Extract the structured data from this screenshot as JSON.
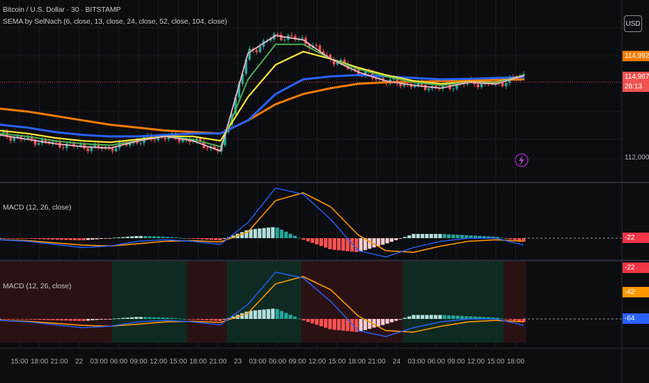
{
  "header": {
    "symbol_title": "Bitcoin / U.S. Dollar · 30 · BITSTAMP",
    "indicator_title": "SEMA by SelNach (6, close, 13, close, 24, close, 52, close, 104, close)",
    "currency_button": "USD"
  },
  "panes": {
    "macd1_title": "MACD (12, 26, close)",
    "macd2_title": "MACD (12, 26, close)"
  },
  "price_scale": {
    "badge_orange": "114,992",
    "badge_red": "114,967",
    "badge_countdown": "28:13",
    "label_112000": "112,000",
    "macd1_badge": "-22",
    "macd2_badge_red": "-22",
    "macd2_badge_orange": "-42",
    "macd2_badge_blue": "-64"
  },
  "colors": {
    "background": "#0c0d10",
    "ema6": "#f2b6c6",
    "ema13": "#4caf50",
    "ema24": "#ffeb3b",
    "ema52": "#2962ff",
    "ema104": "#f57c00",
    "candle_up": "#26a69a",
    "candle_down": "#ef5350",
    "macd_line": "#2962ff",
    "signal_line": "#ff9800",
    "hist_up_strong": "#b2dfdb",
    "hist_up_weak": "#26a69a",
    "hist_down_strong": "#ff5252",
    "hist_down_weak": "#ffcdd2",
    "bg_bull": "#0f2a22",
    "bg_bear": "#2a1214"
  },
  "chart_data": {
    "type": "line",
    "x_ticks": [
      "15:00",
      "18:00",
      "21:00",
      "22",
      "03:00",
      "06:00",
      "09:00",
      "12:00",
      "15:00",
      "18:00",
      "21:00",
      "23",
      "03:00",
      "06:00",
      "09:00",
      "12:00",
      "15:00",
      "18:00",
      "21:00",
      "24",
      "03:00",
      "06:00",
      "09:00",
      "12:00",
      "15:00",
      "18:00"
    ],
    "price": {
      "y_label": "112,000",
      "last": 114967,
      "ema_series": [
        {
          "name": "",
          "key": "ema6",
          "values": [
            112900,
            112750,
            112600,
            112500,
            112450,
            112700,
            112850,
            112700,
            112350,
            115700,
            116300,
            116150,
            115500,
            115050,
            114750,
            114600,
            114500,
            114700,
            114640,
            114930
          ]
        },
        {
          "name": "",
          "key": "ema13",
          "values": [
            112950,
            112850,
            112700,
            112600,
            112550,
            112700,
            112850,
            112750,
            112500,
            114800,
            116000,
            116000,
            115500,
            115150,
            114900,
            114700,
            114600,
            114700,
            114680,
            114930
          ]
        },
        {
          "name": "",
          "key": "ema24",
          "values": [
            113050,
            112950,
            112800,
            112700,
            112650,
            112750,
            112850,
            112850,
            112700,
            114200,
            115300,
            115750,
            115500,
            115200,
            114950,
            114750,
            114650,
            114720,
            114700,
            114930
          ]
        },
        {
          "name": "",
          "key": "ema52",
          "values": [
            113250,
            113150,
            113000,
            112900,
            112850,
            112850,
            112900,
            112950,
            112950,
            113400,
            114300,
            114800,
            114900,
            114950,
            114900,
            114850,
            114800,
            114820,
            114850,
            114880
          ]
        },
        {
          "name": "",
          "key": "ema104",
          "values": [
            113800,
            113700,
            113550,
            113400,
            113250,
            113150,
            113050,
            113000,
            112950,
            113400,
            113950,
            114300,
            114500,
            114650,
            114700,
            114720,
            114740,
            114760,
            114780,
            114800
          ]
        }
      ]
    },
    "macd": {
      "macd_values": [
        -5,
        -10,
        -20,
        -30,
        -25,
        -10,
        -5,
        -10,
        -20,
        50,
        160,
        140,
        60,
        -40,
        -60,
        -30,
        -10,
        0,
        0,
        -22
      ],
      "signal_values": [
        -5,
        -8,
        -15,
        -22,
        -25,
        -18,
        -10,
        -8,
        -12,
        20,
        120,
        145,
        100,
        10,
        -40,
        -45,
        -25,
        -10,
        -5,
        -10
      ]
    }
  }
}
